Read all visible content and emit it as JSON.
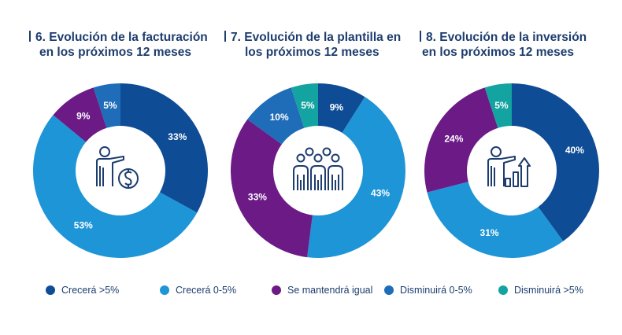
{
  "titles": [
    {
      "line1": "6. Evolución de la facturación",
      "line2": "en los próximos 12 meses"
    },
    {
      "line1": "7. Evolución de la plantilla en",
      "line2": "los próximos 12 meses"
    },
    {
      "line1": "8. Evolución de la inversión",
      "line2": "en los próximos 12 meses"
    }
  ],
  "legend": [
    {
      "label": "Crecerá >5%",
      "color": "#0f4c96"
    },
    {
      "label": "Crecerá 0-5%",
      "color": "#1e95d6"
    },
    {
      "label": "Se mantendrá igual",
      "color": "#6b1a86"
    },
    {
      "label": "Disminuirá 0-5%",
      "color": "#1f6cb8"
    },
    {
      "label": "Disminuirá >5%",
      "color": "#13a3a0"
    }
  ],
  "chart_data": [
    {
      "type": "pie",
      "title": "6. Evolución de la facturación en los próximos 12 meses",
      "icon": "person-dollar-icon",
      "categories": [
        "Crecerá >5%",
        "Crecerá 0-5%",
        "Se mantendrá igual",
        "Disminuirá 0-5%"
      ],
      "values": [
        33,
        53,
        9,
        5
      ],
      "labels": [
        "33%",
        "53%",
        "9%",
        "5%"
      ]
    },
    {
      "type": "pie",
      "title": "7. Evolución de la plantilla en los próximos 12 meses",
      "icon": "people-group-icon",
      "categories": [
        "Crecerá >5%",
        "Crecerá 0-5%",
        "Se mantendrá igual",
        "Disminuirá 0-5%",
        "Disminuirá >5%"
      ],
      "values": [
        9,
        43,
        33,
        10,
        5
      ],
      "labels": [
        "9%",
        "43%",
        "33%",
        "10%",
        "5%"
      ]
    },
    {
      "type": "pie",
      "title": "8. Evolución de la inversión en los próximos 12 meses",
      "icon": "person-growth-chart-icon",
      "categories": [
        "Crecerá >5%",
        "Crecerá 0-5%",
        "Se mantendrá igual",
        "Disminuirá >5%"
      ],
      "values": [
        40,
        31,
        24,
        5
      ],
      "labels": [
        "40%",
        "31%",
        "24%",
        "5%"
      ]
    }
  ]
}
